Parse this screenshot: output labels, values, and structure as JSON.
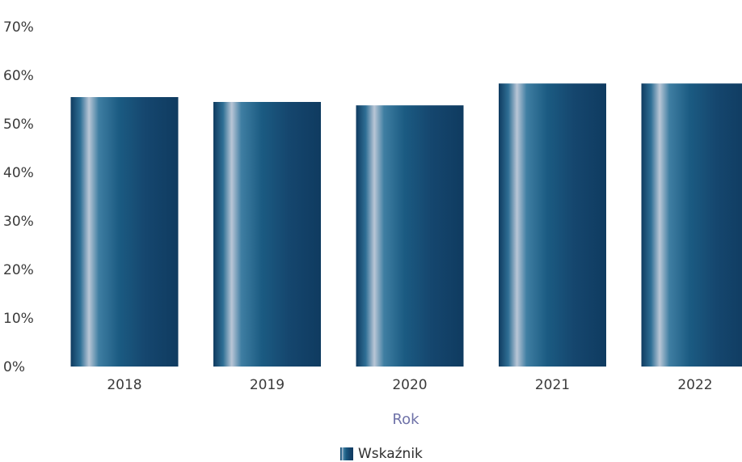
{
  "chart_data": {
    "type": "bar",
    "categories": [
      "2018",
      "2019",
      "2020",
      "2021",
      "2022"
    ],
    "series": [
      {
        "name": "Wskaźnik",
        "values": [
          55.5,
          54.5,
          53.8,
          58.3,
          58.3
        ]
      }
    ],
    "y_ticks": [
      "0%",
      "10%",
      "20%",
      "30%",
      "40%",
      "50%",
      "60%",
      "70%"
    ],
    "ylim": [
      0,
      70
    ],
    "xlabel": "Rok",
    "ylabel": "",
    "grid": false,
    "legend_position": "bottom-center"
  },
  "colors": {
    "bar_dark": "#0f3b60",
    "bar_mid": "#1b5b82",
    "bar_light": "#b9c6d6",
    "axis_title": "#6f72a8",
    "tick_text": "#3a3a3a"
  }
}
